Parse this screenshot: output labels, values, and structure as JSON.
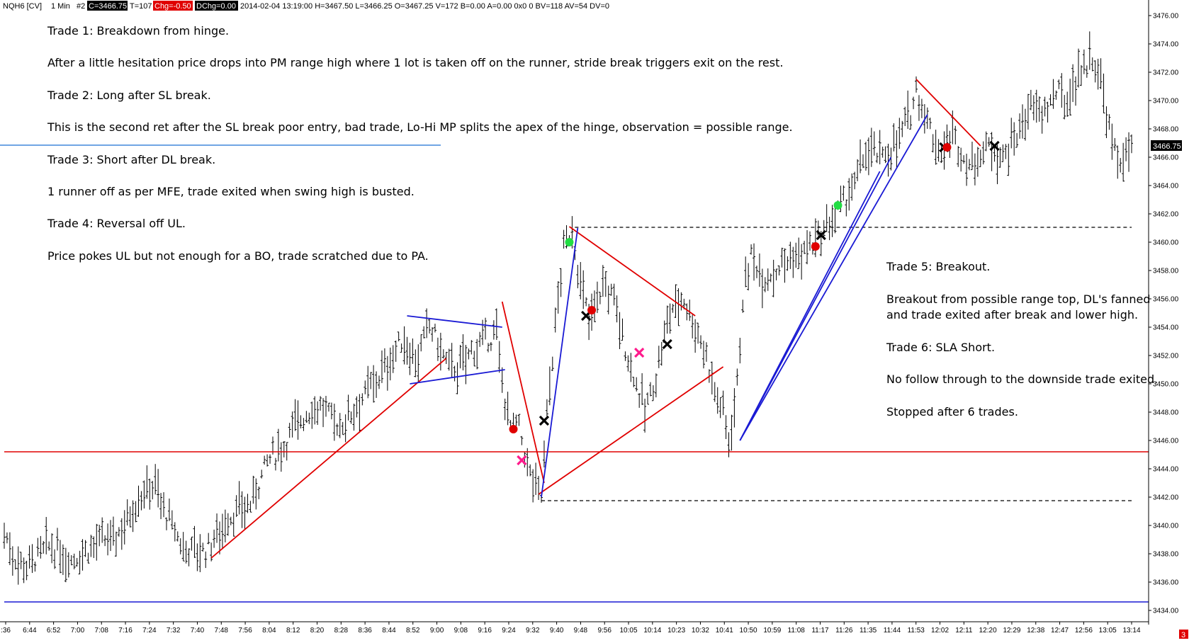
{
  "header": {
    "symbol": "NQH6 [CV]",
    "interval": "1 Min",
    "chart_num": "#2",
    "close": "C=3466.75",
    "ticks": "T=107",
    "change": "Chg=-0.50",
    "dchange": "DChg=0.00",
    "details": "2014-02-04 13:19:00 H=3467.50 L=3466.25 O=3467.25 V=172 B=0.00 A=0.00 0x0 0 BV=118 AV=54 DV=0"
  },
  "price_badge": "3466.75",
  "corner_badge": "3",
  "notes_left": [
    "Trade 1:  Breakdown from hinge.",
    "After a little hesitation price drops into PM range high where 1 lot is taken off on the runner, stride break triggers exit on the rest.",
    "Trade 2:  Long after SL break.",
    "This is the second ret after the SL break poor entry, bad trade, Lo-Hi MP splits the apex of the hinge, observation = possible range.",
    "Trade 3:  Short after DL break.",
    "1 runner off as per MFE, trade exited when swing high is busted.",
    "Trade 4:  Reversal off UL.",
    "Price pokes UL but not enough for a BO, trade scratched due to PA."
  ],
  "notes_right": [
    "Trade 5:  Breakout.",
    "Breakout from possible range top, DL's fanned",
    "and trade exited after break and lower high.",
    "Trade 6:  SLA Short.",
    "No follow through to the downside trade exited.",
    "Stopped after 6 trades."
  ],
  "chart_data": {
    "type": "ohlc",
    "y_axis": {
      "ylim": [
        3433.2,
        3477.0
      ],
      "ticks": [
        "3434.00",
        "3436.00",
        "3438.00",
        "3440.00",
        "3442.00",
        "3444.00",
        "3446.00",
        "3448.00",
        "3450.00",
        "3452.00",
        "3454.00",
        "3456.00",
        "3458.00",
        "3460.00",
        "3462.00",
        "3464.00",
        "3466.00",
        "3468.00",
        "3470.00",
        "3472.00",
        "3474.00",
        "3476.00"
      ]
    },
    "x_axis": {
      "ticks": [
        ":36",
        "6:44",
        "6:52",
        "7:00",
        "7:08",
        "7:16",
        "7:24",
        "7:32",
        "7:40",
        "7:48",
        "7:56",
        "8:04",
        "8:12",
        "8:20",
        "8:28",
        "8:36",
        "8:44",
        "8:52",
        "9:00",
        "9:08",
        "9:16",
        "9:24",
        "9:32",
        "9:40",
        "9:48",
        "9:56",
        "10:05",
        "10:14",
        "10:23",
        "10:32",
        "10:41",
        "10:50",
        "10:59",
        "11:08",
        "11:17",
        "11:26",
        "11:35",
        "11:44",
        "11:53",
        "12:02",
        "12:11",
        "12:20",
        "12:29",
        "12:38",
        "12:47",
        "12:56",
        "13:05",
        "13:14"
      ]
    },
    "price_path": [
      [
        "6:36",
        3439.5
      ],
      [
        "6:40",
        3437.6
      ],
      [
        "6:44",
        3437.2
      ],
      [
        "6:52",
        3438.5
      ],
      [
        "7:00",
        3437.6
      ],
      [
        "7:08",
        3438.6
      ],
      [
        "7:16",
        3439.2
      ],
      [
        "7:24",
        3442.0
      ],
      [
        "7:30",
        3443.0
      ],
      [
        "7:32",
        3441.5
      ],
      [
        "7:40",
        3438.4
      ],
      [
        "7:48",
        3438.2
      ],
      [
        "7:56",
        3440.5
      ],
      [
        "8:04",
        3441.5
      ],
      [
        "8:10",
        3444.5
      ],
      [
        "8:16",
        3445.6
      ],
      [
        "8:20",
        3447.2
      ],
      [
        "8:28",
        3448.5
      ],
      [
        "8:36",
        3447.0
      ],
      [
        "8:44",
        3449.0
      ],
      [
        "8:52",
        3451.0
      ],
      [
        "8:58",
        3453.0
      ],
      [
        "9:04",
        3451.8
      ],
      [
        "9:08",
        3454.2
      ],
      [
        "9:14",
        3451.5
      ],
      [
        "9:18",
        3451.0
      ],
      [
        "9:24",
        3452.5
      ],
      [
        "9:32",
        3453.5
      ],
      [
        "9:34",
        3450.0
      ],
      [
        "9:37",
        3447.0
      ],
      [
        "9:40",
        3446.8
      ],
      [
        "9:44",
        3443.5
      ],
      [
        "9:48",
        3442.0
      ],
      [
        "9:50",
        3448.0
      ],
      [
        "9:53",
        3454.0
      ],
      [
        "9:56",
        3459.5
      ],
      [
        "9:59",
        3461.0
      ],
      [
        "10:02",
        3457.0
      ],
      [
        "10:05",
        3454.5
      ],
      [
        "10:10",
        3457.0
      ],
      [
        "10:14",
        3456.0
      ],
      [
        "10:18",
        3452.5
      ],
      [
        "10:22",
        3450.0
      ],
      [
        "10:25",
        3448.0
      ],
      [
        "10:29",
        3450.5
      ],
      [
        "10:32",
        3453.5
      ],
      [
        "10:35",
        3455.5
      ],
      [
        "10:39",
        3456.0
      ],
      [
        "10:43",
        3454.0
      ],
      [
        "10:47",
        3452.0
      ],
      [
        "10:50",
        3449.5
      ],
      [
        "10:53",
        3448.0
      ],
      [
        "10:55",
        3446.0
      ],
      [
        "10:58",
        3450.0
      ],
      [
        "11:00",
        3456.0
      ],
      [
        "11:03",
        3459.0
      ],
      [
        "11:08",
        3457.5
      ],
      [
        "11:14",
        3458.5
      ],
      [
        "11:20",
        3459.0
      ],
      [
        "11:26",
        3460.0
      ],
      [
        "11:32",
        3461.5
      ],
      [
        "11:35",
        3462.5
      ],
      [
        "11:40",
        3464.0
      ],
      [
        "11:44",
        3466.5
      ],
      [
        "11:50",
        3466.0
      ],
      [
        "11:55",
        3467.0
      ],
      [
        "12:00",
        3469.0
      ],
      [
        "12:02",
        3471.0
      ],
      [
        "12:05",
        3469.0
      ],
      [
        "12:09",
        3467.0
      ],
      [
        "12:11",
        3466.5
      ],
      [
        "12:15",
        3467.5
      ],
      [
        "12:20",
        3465.5
      ],
      [
        "12:24",
        3466.0
      ],
      [
        "12:29",
        3467.0
      ],
      [
        "12:33",
        3466.0
      ],
      [
        "12:38",
        3467.5
      ],
      [
        "12:42",
        3469.5
      ],
      [
        "12:47",
        3469.0
      ],
      [
        "12:52",
        3470.5
      ],
      [
        "12:56",
        3470.0
      ],
      [
        "13:00",
        3472.0
      ],
      [
        "13:05",
        3473.0
      ],
      [
        "13:08",
        3471.5
      ],
      [
        "13:11",
        3468.0
      ],
      [
        "13:14",
        3465.5
      ],
      [
        "13:19",
        3466.75
      ]
    ],
    "horizontal_lines": [
      {
        "price": 3445.2,
        "color": "#e00000",
        "style": "solid"
      },
      {
        "price": 3434.6,
        "color": "#1a1ad4",
        "style": "solid"
      },
      {
        "price": 3461.05,
        "from": "10:00",
        "to": "13:19",
        "color": "#000000",
        "style": "dashed"
      },
      {
        "price": 3441.75,
        "from": "9:48",
        "to": "13:19",
        "color": "#000000",
        "style": "dashed"
      }
    ],
    "trendlines": [
      {
        "color": "#e00000",
        "from": [
          "7:50",
          3437.7
        ],
        "to": [
          "9:14",
          3451.8
        ]
      },
      {
        "color": "#e00000",
        "from": [
          "9:34",
          3455.8
        ],
        "to": [
          "9:49",
          3443.0
        ]
      },
      {
        "color": "#e00000",
        "from": [
          "9:58",
          3461.1
        ],
        "to": [
          "10:43",
          3454.8
        ]
      },
      {
        "color": "#e00000",
        "from": [
          "9:47",
          3442.2
        ],
        "to": [
          "10:53",
          3451.2
        ]
      },
      {
        "color": "#e00000",
        "from": [
          "12:02",
          3471.5
        ],
        "to": [
          "12:25",
          3466.8
        ]
      },
      {
        "color": "#1a1ad4",
        "from": [
          "9:00",
          3454.8
        ],
        "to": [
          "9:34",
          3454.0
        ]
      },
      {
        "color": "#1a1ad4",
        "from": [
          "9:01",
          3450.0
        ],
        "to": [
          "9:35",
          3451.0
        ]
      },
      {
        "color": "#1a1ad4",
        "from": [
          "9:48",
          3442.0
        ],
        "to": [
          "10:01",
          3461.0
        ]
      },
      {
        "color": "#1a1ad4",
        "from": [
          "10:59",
          3446.0
        ],
        "to": [
          "12:06",
          3469.0
        ]
      },
      {
        "color": "#1a1ad4",
        "from": [
          "10:59",
          3446.0
        ],
        "to": [
          "11:53",
          3466.0
        ]
      },
      {
        "color": "#1a1ad4",
        "from": [
          "10:59",
          3446.0
        ],
        "to": [
          "11:49",
          3465.0
        ]
      }
    ],
    "markers": [
      {
        "type": "dot",
        "color": "#e00000",
        "at": [
          "9:38",
          3446.8
        ]
      },
      {
        "type": "cross",
        "color": "#ff1a8c",
        "at": [
          "9:41",
          3444.6
        ]
      },
      {
        "type": "cross",
        "color": "#000000",
        "at": [
          "9:49",
          3447.4
        ]
      },
      {
        "type": "dot",
        "color": "#22dd44",
        "at": [
          "9:58",
          3460.0
        ]
      },
      {
        "type": "cross",
        "color": "#000000",
        "at": [
          "10:04",
          3454.8
        ]
      },
      {
        "type": "dot",
        "color": "#e00000",
        "at": [
          "10:06",
          3455.2
        ]
      },
      {
        "type": "cross",
        "color": "#ff1a8c",
        "at": [
          "10:23",
          3452.2
        ]
      },
      {
        "type": "cross",
        "color": "#000000",
        "at": [
          "10:33",
          3452.8
        ]
      },
      {
        "type": "dot",
        "color": "#e00000",
        "at": [
          "11:26",
          3459.7
        ]
      },
      {
        "type": "cross",
        "color": "#000000",
        "at": [
          "11:28",
          3460.5
        ]
      },
      {
        "type": "dot",
        "color": "#22dd44",
        "at": [
          "11:34",
          3462.6
        ]
      },
      {
        "type": "cross",
        "color": "#000000",
        "at": [
          "12:12",
          3466.7
        ]
      },
      {
        "type": "dot",
        "color": "#e00000",
        "at": [
          "12:13",
          3466.7
        ]
      },
      {
        "type": "cross",
        "color": "#000000",
        "at": [
          "12:30",
          3466.8
        ]
      }
    ]
  },
  "colors": {
    "bars": "#000000",
    "trendline_red": "#e00000",
    "trendline_blue": "#1a1ad4",
    "badge_bg": "#000000",
    "chg_bg": "#e00000"
  }
}
